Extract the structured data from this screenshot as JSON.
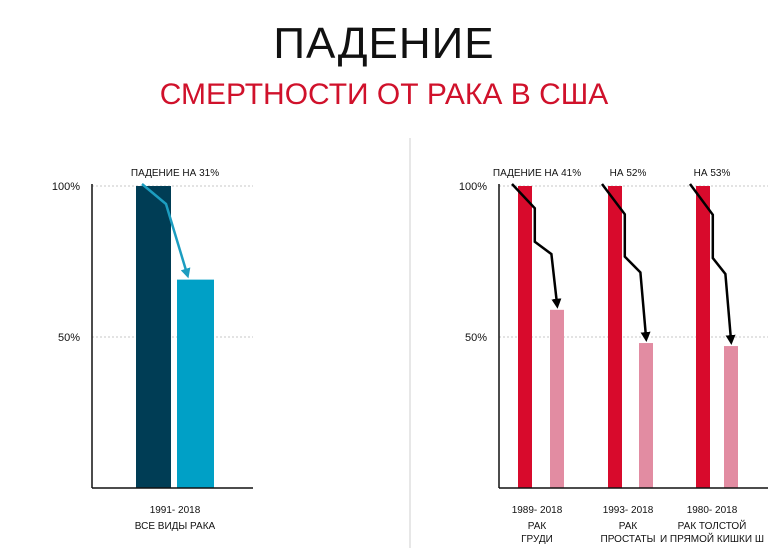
{
  "title": "ПАДЕНИЕ",
  "subtitle": "СМЕРТНОСТИ ОТ РАКА В США",
  "colors": {
    "all_start": "#003d55",
    "all_end": "#00a0c6",
    "all_arrow": "#1c9dc0",
    "red_start": "#d80a2c",
    "red_end": "#e28ca2",
    "red_arrow": "#000000"
  },
  "chart_data": [
    {
      "type": "bar",
      "ytick_labels": [
        "100%",
        "50%"
      ],
      "ylim": [
        0,
        100
      ],
      "groups": [
        {
          "drop_label": "ПАДЕНИЕ НА 31%",
          "period": "1991- 2018",
          "category_lines": [
            "ВСЕ ВИДЫ РАКА"
          ],
          "values": [
            100,
            69
          ]
        }
      ]
    },
    {
      "type": "bar",
      "ytick_labels": [
        "100%",
        "50%"
      ],
      "ylim": [
        0,
        100
      ],
      "groups": [
        {
          "drop_label": "ПАДЕНИЕ НА 41%",
          "period": "1989- 2018",
          "category_lines": [
            "РАК",
            "ГРУДИ"
          ],
          "values": [
            100,
            59
          ]
        },
        {
          "drop_label": "НА 52%",
          "period": "1993- 2018",
          "category_lines": [
            "РАК",
            "ПРОСТАТЫ"
          ],
          "values": [
            100,
            48
          ]
        },
        {
          "drop_label": "НА 53%",
          "period": "1980- 2018",
          "category_lines": [
            "РАК ТОЛСТОЙ",
            "И ПРЯМОЙ КИШКИ Ш"
          ],
          "values": [
            100,
            47
          ]
        }
      ]
    }
  ]
}
